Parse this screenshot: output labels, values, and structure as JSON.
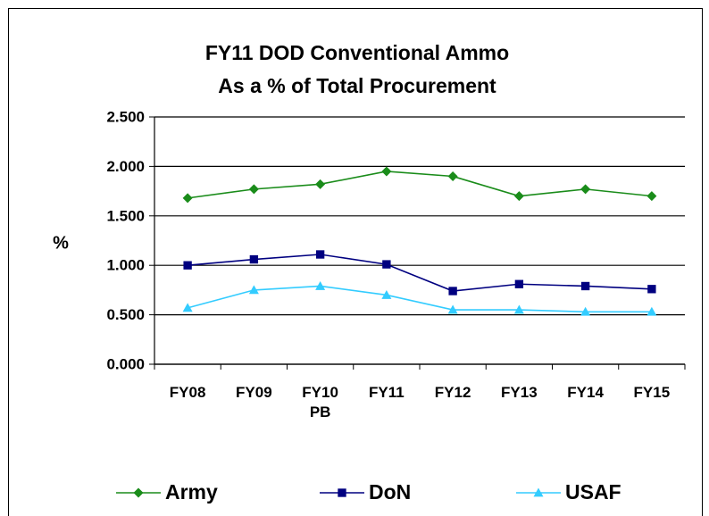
{
  "chart_data": {
    "type": "line",
    "title": "FY11 DOD Conventional Ammo\nAs a % of Total Procurement",
    "y_label": "%",
    "categories": [
      "FY08",
      "FY09",
      "FY10\nPB",
      "FY11",
      "FY12",
      "FY13",
      "FY14",
      "FY15"
    ],
    "series": [
      {
        "name": "Army",
        "color": "#1a8c1a",
        "marker": "diamond",
        "values": [
          1.68,
          1.77,
          1.82,
          1.95,
          1.9,
          1.7,
          1.77,
          1.7
        ]
      },
      {
        "name": "DoN",
        "color": "#000080",
        "marker": "square",
        "values": [
          1.0,
          1.06,
          1.11,
          1.01,
          0.74,
          0.81,
          0.79,
          0.76
        ]
      },
      {
        "name": "USAF",
        "color": "#33ccff",
        "marker": "triangle",
        "values": [
          0.57,
          0.75,
          0.79,
          0.7,
          0.55,
          0.55,
          0.53,
          0.53
        ]
      }
    ],
    "ylim": [
      0,
      2.5
    ],
    "yticks": [
      {
        "value": 0,
        "label": "0.000"
      },
      {
        "value": 0.5,
        "label": "0.500"
      },
      {
        "value": 1,
        "label": "1.000"
      },
      {
        "value": 1.5,
        "label": "1.500"
      },
      {
        "value": 2,
        "label": "2.000"
      },
      {
        "value": 2.5,
        "label": "2.500"
      }
    ],
    "grid": true,
    "legend": "bottom"
  }
}
